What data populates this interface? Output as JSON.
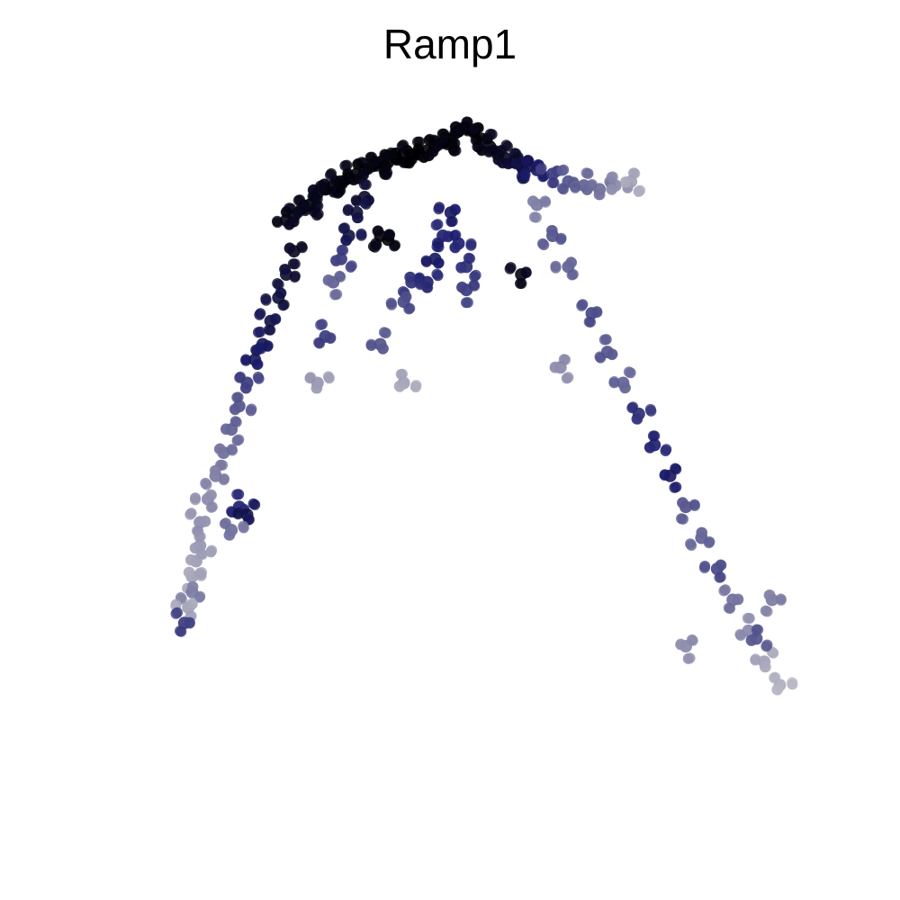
{
  "chart_data": {
    "type": "scatter",
    "title": "Ramp1",
    "xlabel": "",
    "ylabel": "",
    "axes_visible": false,
    "grid": false,
    "legend": "none",
    "color_scale": {
      "low": "#d3d3d3",
      "mid": "#1c1c6e",
      "high": "#000000"
    },
    "clusters": [
      {
        "name": "",
        "points": [
          [
            0.64,
            0.76,
            0.95
          ],
          [
            0.66,
            0.77,
            0.95
          ],
          [
            0.68,
            0.79,
            0.95
          ],
          [
            0.7,
            0.8,
            0.96
          ],
          [
            0.72,
            0.83,
            0.96
          ],
          [
            0.74,
            0.84,
            0.96
          ],
          [
            0.76,
            0.85,
            0.97
          ],
          [
            0.78,
            0.86,
            0.97
          ],
          [
            0.8,
            0.87,
            0.98
          ],
          [
            0.82,
            0.88,
            0.98
          ],
          [
            0.84,
            0.89,
            0.98
          ],
          [
            0.86,
            0.9,
            0.99
          ],
          [
            0.88,
            0.91,
            0.99
          ],
          [
            0.9,
            0.91,
            0.99
          ],
          [
            0.92,
            0.92,
            1.0
          ],
          [
            0.94,
            0.93,
            1.0
          ],
          [
            0.96,
            0.93,
            1.0
          ],
          [
            0.98,
            0.93,
            1.0
          ],
          [
            1.0,
            0.94,
            1.0
          ],
          [
            1.02,
            0.95,
            0.99
          ],
          [
            1.04,
            0.96,
            0.99
          ],
          [
            1.06,
            0.97,
            0.99
          ],
          [
            1.08,
            0.99,
            1.0
          ],
          [
            1.1,
            1.0,
            1.0
          ],
          [
            1.12,
            0.99,
            0.99
          ],
          [
            1.14,
            0.97,
            0.98
          ],
          [
            1.16,
            0.95,
            0.96
          ],
          [
            1.18,
            0.93,
            0.94
          ],
          [
            1.2,
            0.92,
            0.92
          ],
          [
            1.22,
            0.91,
            0.9
          ],
          [
            1.24,
            0.9,
            0.85
          ],
          [
            1.26,
            0.9,
            0.8
          ],
          [
            1.28,
            0.89,
            0.75
          ],
          [
            1.32,
            0.88,
            0.6
          ],
          [
            1.36,
            0.86,
            0.5
          ],
          [
            1.4,
            0.85,
            0.45
          ],
          [
            1.44,
            0.84,
            0.4
          ],
          [
            1.48,
            0.85,
            0.3
          ],
          [
            1.52,
            0.86,
            0.2
          ],
          [
            0.66,
            0.68,
            0.92
          ],
          [
            0.64,
            0.62,
            0.88
          ],
          [
            0.62,
            0.56,
            0.85
          ],
          [
            0.6,
            0.5,
            0.82
          ],
          [
            0.58,
            0.44,
            0.78
          ],
          [
            0.56,
            0.4,
            0.75
          ],
          [
            0.54,
            0.34,
            0.6
          ],
          [
            0.52,
            0.28,
            0.5
          ],
          [
            0.5,
            0.22,
            0.45
          ],
          [
            0.48,
            0.16,
            0.4
          ],
          [
            0.46,
            0.1,
            0.35
          ],
          [
            0.44,
            0.04,
            0.3
          ],
          [
            0.42,
            -0.02,
            0.28
          ],
          [
            0.52,
            0.02,
            0.7
          ],
          [
            0.54,
            0.0,
            0.8
          ],
          [
            0.5,
            -0.04,
            0.4
          ],
          [
            0.42,
            -0.08,
            0.25
          ],
          [
            0.41,
            -0.12,
            0.22
          ],
          [
            0.4,
            -0.16,
            0.2
          ],
          [
            0.4,
            -0.2,
            0.35
          ],
          [
            0.39,
            -0.24,
            0.2
          ],
          [
            0.38,
            -0.28,
            0.6
          ],
          [
            0.84,
            0.82,
            0.9
          ],
          [
            0.82,
            0.78,
            0.85
          ],
          [
            0.8,
            0.72,
            0.82
          ],
          [
            0.78,
            0.66,
            0.6
          ],
          [
            0.76,
            0.6,
            0.45
          ],
          [
            0.88,
            0.72,
            0.98
          ],
          [
            0.9,
            0.71,
            0.97
          ],
          [
            1.06,
            0.78,
            0.75
          ],
          [
            1.04,
            0.72,
            0.7
          ],
          [
            1.02,
            0.66,
            0.75
          ],
          [
            1.0,
            0.6,
            0.7
          ],
          [
            1.08,
            0.7,
            0.7
          ],
          [
            1.1,
            0.64,
            0.65
          ],
          [
            1.1,
            0.58,
            0.6
          ],
          [
            0.96,
            0.6,
            0.65
          ],
          [
            0.94,
            0.55,
            0.55
          ],
          [
            1.24,
            0.62,
            0.95
          ],
          [
            0.74,
            0.46,
            0.6
          ],
          [
            0.88,
            0.44,
            0.5
          ],
          [
            0.72,
            0.34,
            0.25
          ],
          [
            0.94,
            0.34,
            0.2
          ],
          [
            1.34,
            0.38,
            0.3
          ],
          [
            1.28,
            0.8,
            0.35
          ],
          [
            1.32,
            0.72,
            0.5
          ],
          [
            1.36,
            0.64,
            0.45
          ],
          [
            1.42,
            0.52,
            0.55
          ],
          [
            1.46,
            0.42,
            0.5
          ],
          [
            1.5,
            0.34,
            0.45
          ],
          [
            1.54,
            0.26,
            0.65
          ],
          [
            1.58,
            0.18,
            0.7
          ],
          [
            1.62,
            0.1,
            0.75
          ],
          [
            1.66,
            0.02,
            0.5
          ],
          [
            1.7,
            -0.06,
            0.45
          ],
          [
            1.74,
            -0.14,
            0.55
          ],
          [
            1.78,
            -0.22,
            0.4
          ],
          [
            1.82,
            -0.3,
            0.3
          ],
          [
            1.86,
            -0.38,
            0.2
          ],
          [
            1.9,
            -0.44,
            0.15
          ],
          [
            1.84,
            -0.32,
            0.5
          ],
          [
            1.66,
            -0.34,
            0.3
          ],
          [
            1.88,
            -0.22,
            0.35
          ]
        ]
      }
    ]
  }
}
